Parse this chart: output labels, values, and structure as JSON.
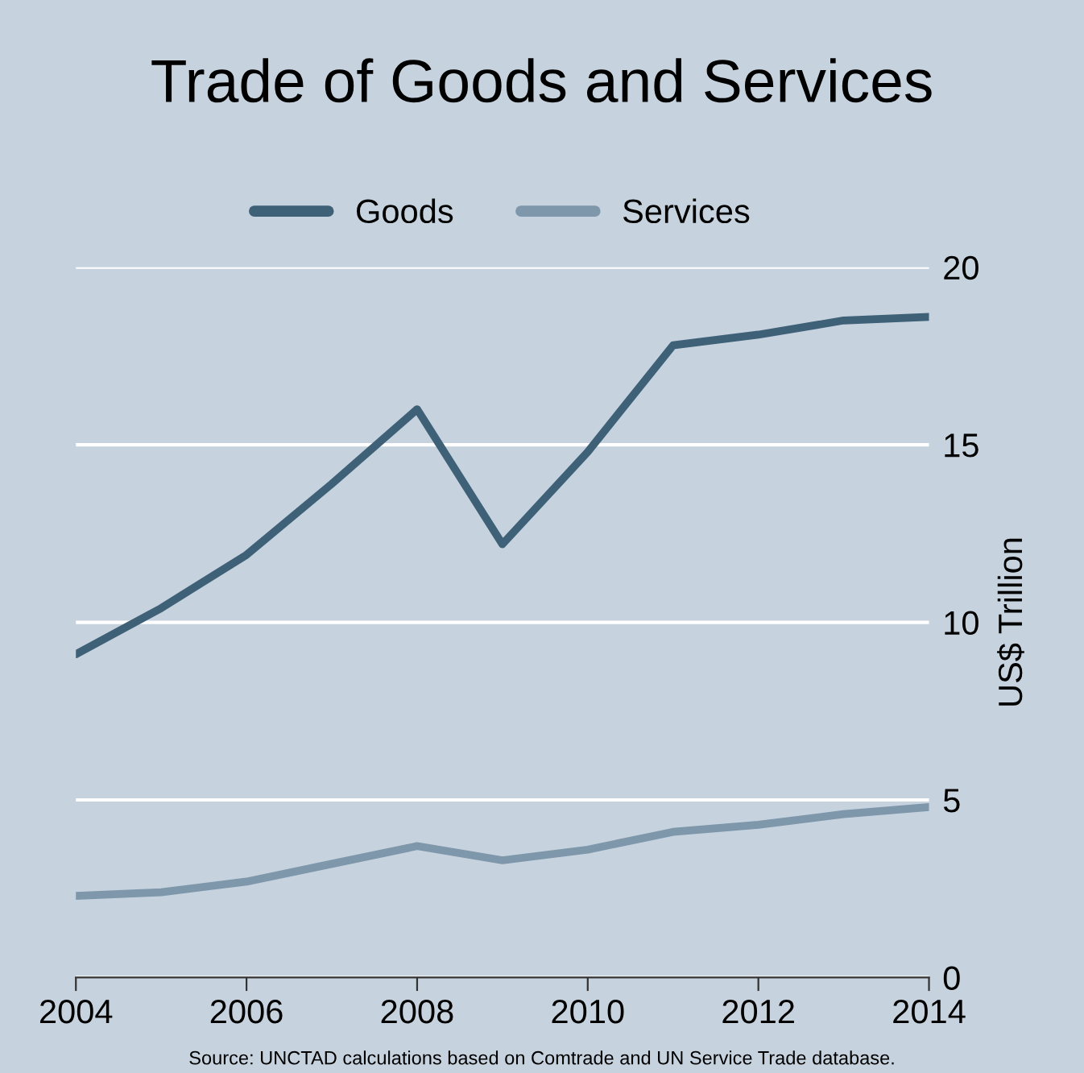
{
  "chart_data": {
    "type": "line",
    "title": "Trade of Goods and Services",
    "ylabel": "US$ Trillion",
    "x": [
      2004,
      2005,
      2006,
      2007,
      2008,
      2009,
      2010,
      2011,
      2012,
      2013,
      2014
    ],
    "series": [
      {
        "name": "Goods",
        "color": "#3f6178",
        "values": [
          9.1,
          10.4,
          11.9,
          13.9,
          16.0,
          12.2,
          14.8,
          17.8,
          18.1,
          18.5,
          18.6
        ]
      },
      {
        "name": "Services",
        "color": "#7f97ab",
        "values": [
          2.3,
          2.4,
          2.7,
          3.2,
          3.7,
          3.3,
          3.6,
          4.1,
          4.3,
          4.6,
          4.8
        ]
      }
    ],
    "xlim": [
      2004,
      2014
    ],
    "xticks": [
      2004,
      2006,
      2008,
      2010,
      2012,
      2014
    ],
    "ylim": [
      0,
      20
    ],
    "yticks": [
      0,
      5,
      10,
      15,
      20
    ],
    "grid": "y",
    "legend": "top",
    "marker": "none",
    "line_style": "solid",
    "annotations": [
      "Source: UNCTAD calculations based on Comtrade and UN Service Trade database."
    ]
  }
}
